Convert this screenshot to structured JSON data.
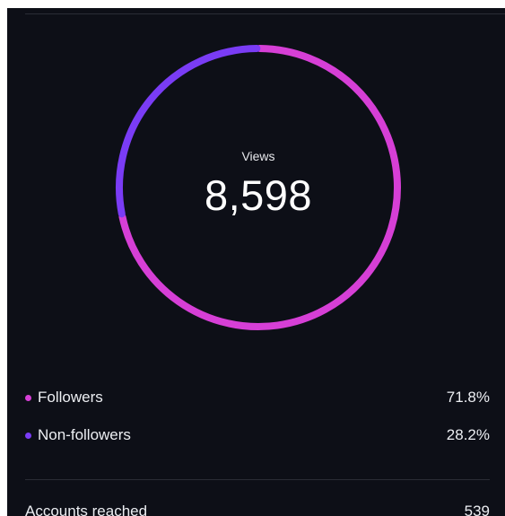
{
  "chart_data": {
    "type": "pie",
    "center_label": "Views",
    "center_value": "8,598",
    "categories": [
      "Followers",
      "Non-followers"
    ],
    "values": [
      71.8,
      28.2
    ],
    "colors": [
      "#d63fd6",
      "#7a3cf5"
    ]
  },
  "legend": {
    "items": [
      {
        "label": "Followers",
        "value": "71.8%",
        "color": "#d63fd6"
      },
      {
        "label": "Non-followers",
        "value": "28.2%",
        "color": "#7a3cf5"
      }
    ]
  },
  "metrics": {
    "accounts_reached": {
      "label": "Accounts reached",
      "value": "539"
    }
  }
}
